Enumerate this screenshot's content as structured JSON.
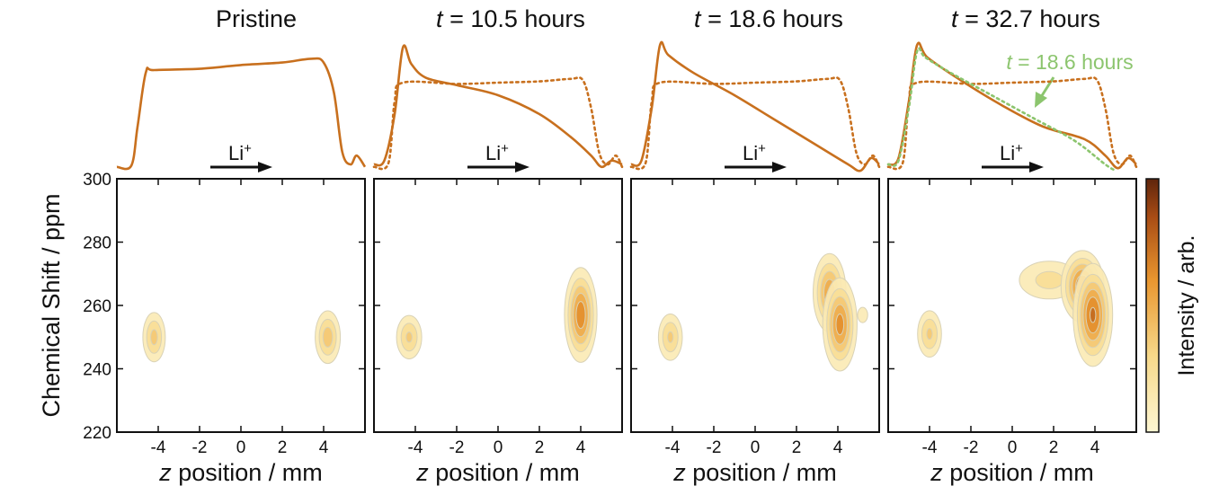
{
  "chart_data": {
    "type": "heatmap",
    "ylabel": "Chemical Shift / ppm",
    "xlabel_var": "z",
    "xlabel_rest": " position / mm",
    "xlim": [
      -6,
      6
    ],
    "ylim": [
      220,
      300
    ],
    "xticks": [
      -4,
      -2,
      0,
      2,
      4
    ],
    "yticks": [
      220,
      240,
      260,
      280,
      300
    ],
    "colorbar_label": "Intensity / arb.",
    "arrow_label": "Li",
    "arrow_label_sup": "+",
    "colors": {
      "profile": "#c8701e",
      "reference_profile": "#8cc56e",
      "contour_low": "#fbf3c8",
      "contour_mid": "#eba13a",
      "contour_high": "#6b2a0c",
      "contour_edge": "#d9d2b6"
    },
    "panels": [
      {
        "title_var": "",
        "title_text": "Pristine",
        "profile": [
          [
            -6,
            0.03
          ],
          [
            -5.3,
            0.04
          ],
          [
            -5.0,
            0.35
          ],
          [
            -4.6,
            0.78
          ],
          [
            -4.2,
            0.8
          ],
          [
            -2,
            0.81
          ],
          [
            0,
            0.84
          ],
          [
            2,
            0.86
          ],
          [
            3.4,
            0.89
          ],
          [
            4.0,
            0.86
          ],
          [
            4.5,
            0.62
          ],
          [
            4.9,
            0.15
          ],
          [
            5.3,
            0.05
          ],
          [
            5.6,
            0.12
          ],
          [
            6,
            0.03
          ]
        ],
        "dotted_profile": null,
        "blobs": [
          {
            "x": -4.2,
            "y": 250,
            "sx": 0.35,
            "sy": 5,
            "amp": 0.42
          },
          {
            "x": 4.2,
            "y": 250,
            "sx": 0.38,
            "sy": 5.2,
            "amp": 0.45
          }
        ]
      },
      {
        "title_var": "t",
        "title_text": " = 10.5 hours",
        "profile": [
          [
            -6,
            0.05
          ],
          [
            -5.5,
            0.08
          ],
          [
            -5.0,
            0.45
          ],
          [
            -4.6,
            0.98
          ],
          [
            -4.2,
            0.85
          ],
          [
            -3.5,
            0.74
          ],
          [
            -2,
            0.68
          ],
          [
            0,
            0.6
          ],
          [
            2,
            0.45
          ],
          [
            3.5,
            0.27
          ],
          [
            4.5,
            0.12
          ],
          [
            5.0,
            0.03
          ],
          [
            5.5,
            0.08
          ],
          [
            6,
            0.05
          ]
        ],
        "dotted_profile": [
          [
            -6,
            0.03
          ],
          [
            -5.3,
            0.06
          ],
          [
            -5.0,
            0.55
          ],
          [
            -4.6,
            0.7
          ],
          [
            -2,
            0.69
          ],
          [
            0,
            0.7
          ],
          [
            2,
            0.71
          ],
          [
            3.5,
            0.73
          ],
          [
            4.1,
            0.72
          ],
          [
            4.5,
            0.5
          ],
          [
            4.9,
            0.14
          ],
          [
            5.3,
            0.05
          ],
          [
            5.7,
            0.12
          ],
          [
            6,
            0.03
          ]
        ],
        "blobs": [
          {
            "x": -4.3,
            "y": 250,
            "sx": 0.4,
            "sy": 4.5,
            "amp": 0.4
          },
          {
            "x": 4.0,
            "y": 257,
            "sx": 0.42,
            "sy": 8,
            "amp": 0.72
          }
        ]
      },
      {
        "title_var": "t",
        "title_text": " = 18.6 hours",
        "profile": [
          [
            -6,
            0.05
          ],
          [
            -5.5,
            0.08
          ],
          [
            -5.0,
            0.5
          ],
          [
            -4.6,
            1.0
          ],
          [
            -4.2,
            0.92
          ],
          [
            -3.0,
            0.78
          ],
          [
            -1,
            0.6
          ],
          [
            1,
            0.4
          ],
          [
            3,
            0.2
          ],
          [
            4.5,
            0.05
          ],
          [
            5.1,
            0.0
          ],
          [
            5.6,
            0.1
          ],
          [
            6,
            0.05
          ]
        ],
        "dotted_profile": [
          [
            -6,
            0.03
          ],
          [
            -5.3,
            0.06
          ],
          [
            -5.0,
            0.55
          ],
          [
            -4.6,
            0.7
          ],
          [
            -2,
            0.69
          ],
          [
            0,
            0.7
          ],
          [
            2,
            0.71
          ],
          [
            3.5,
            0.73
          ],
          [
            4.1,
            0.72
          ],
          [
            4.5,
            0.5
          ],
          [
            4.9,
            0.14
          ],
          [
            5.3,
            0.05
          ],
          [
            5.7,
            0.12
          ],
          [
            6,
            0.03
          ]
        ],
        "blobs": [
          {
            "x": -4.1,
            "y": 250,
            "sx": 0.38,
            "sy": 4.8,
            "amp": 0.4
          },
          {
            "x": 3.6,
            "y": 264,
            "sx": 0.45,
            "sy": 7,
            "amp": 0.6
          },
          {
            "x": 4.1,
            "y": 254,
            "sx": 0.45,
            "sy": 8,
            "amp": 0.68
          },
          {
            "x": 5.2,
            "y": 257,
            "sx": 0.25,
            "sy": 2.5,
            "amp": 0.2
          }
        ]
      },
      {
        "title_var": "t",
        "title_text": " = 32.7 hours",
        "profile": [
          [
            -6,
            0.05
          ],
          [
            -5.5,
            0.1
          ],
          [
            -5.0,
            0.55
          ],
          [
            -4.6,
            1.0
          ],
          [
            -4.1,
            0.9
          ],
          [
            -2.5,
            0.72
          ],
          [
            -0.5,
            0.52
          ],
          [
            1.5,
            0.35
          ],
          [
            3.5,
            0.25
          ],
          [
            4.5,
            0.12
          ],
          [
            5.1,
            0.02
          ],
          [
            5.6,
            0.1
          ],
          [
            6,
            0.05
          ]
        ],
        "dotted_profile": [
          [
            -6,
            0.03
          ],
          [
            -5.3,
            0.06
          ],
          [
            -5.0,
            0.55
          ],
          [
            -4.6,
            0.7
          ],
          [
            -2,
            0.69
          ],
          [
            0,
            0.7
          ],
          [
            2,
            0.71
          ],
          [
            3.5,
            0.73
          ],
          [
            4.1,
            0.72
          ],
          [
            4.5,
            0.5
          ],
          [
            4.9,
            0.14
          ],
          [
            5.3,
            0.05
          ],
          [
            5.7,
            0.12
          ],
          [
            6,
            0.03
          ]
        ],
        "reference_profile": [
          [
            -6,
            0.05
          ],
          [
            -5.5,
            0.08
          ],
          [
            -5.0,
            0.5
          ],
          [
            -4.6,
            0.95
          ],
          [
            -4.2,
            0.9
          ],
          [
            -3.0,
            0.78
          ],
          [
            -1,
            0.6
          ],
          [
            1,
            0.42
          ],
          [
            3,
            0.24
          ],
          [
            4.5,
            0.05
          ],
          [
            5.0,
            0.0
          ]
        ],
        "annotation_var": "t",
        "annotation_text": " = 18.6 hours",
        "blobs": [
          {
            "x": -4.0,
            "y": 251,
            "sx": 0.38,
            "sy": 4.8,
            "amp": 0.4
          },
          {
            "x": 1.8,
            "y": 268,
            "sx": 1.1,
            "sy": 4.5,
            "amp": 0.3
          },
          {
            "x": 3.4,
            "y": 266,
            "sx": 0.55,
            "sy": 6,
            "amp": 0.75
          },
          {
            "x": 3.9,
            "y": 257,
            "sx": 0.5,
            "sy": 8.5,
            "amp": 0.78
          }
        ]
      }
    ]
  }
}
